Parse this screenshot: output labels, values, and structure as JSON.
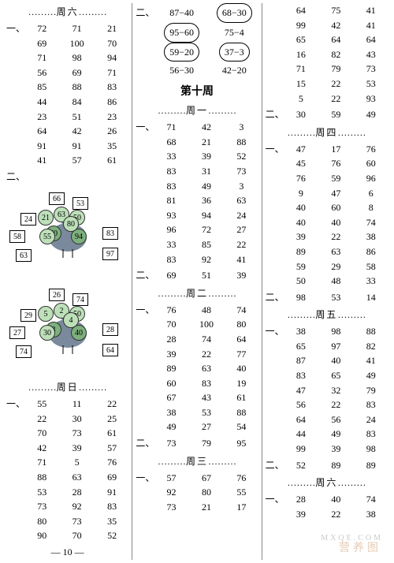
{
  "page_number": "— 10 —",
  "watermark_large": "营养图",
  "watermark_small": "MXQE.COM",
  "col1": {
    "header_sat": "周六",
    "sec1_lead": "一、",
    "t_sat": [
      [
        "72",
        "71",
        "21"
      ],
      [
        "69",
        "100",
        "70"
      ],
      [
        "71",
        "98",
        "94"
      ],
      [
        "56",
        "69",
        "71"
      ],
      [
        "85",
        "88",
        "83"
      ],
      [
        "44",
        "84",
        "86"
      ],
      [
        "23",
        "51",
        "23"
      ],
      [
        "64",
        "42",
        "26"
      ],
      [
        "91",
        "91",
        "35"
      ],
      [
        "41",
        "57",
        "61"
      ]
    ],
    "sec2_lead": "二、",
    "peacock1_outer": [
      "24",
      "58",
      "63",
      "66",
      "53",
      "83",
      "97"
    ],
    "peacock1_inner_top": [
      "21",
      "63",
      "50"
    ],
    "peacock1_inner_bot": [
      "55",
      "80"
    ],
    "peacock1_inner_mid": [
      "60",
      "94"
    ],
    "peacock2_outer": [
      "29",
      "27",
      "74",
      "26",
      "74",
      "28",
      "64"
    ],
    "peacock2_inner_top": [
      "5",
      "2",
      "50"
    ],
    "peacock2_inner_bot": [
      "30",
      "4"
    ],
    "peacock2_inner_mid": [
      "3",
      "40"
    ],
    "header_sun": "周日",
    "t_sun_lead": "一、",
    "t_sun": [
      [
        "55",
        "11",
        "22"
      ],
      [
        "22",
        "30",
        "25"
      ],
      [
        "70",
        "73",
        "61"
      ],
      [
        "42",
        "39",
        "57"
      ],
      [
        "71",
        "5",
        "76"
      ],
      [
        "88",
        "63",
        "69"
      ],
      [
        "53",
        "28",
        "91"
      ],
      [
        "73",
        "92",
        "83"
      ],
      [
        "80",
        "73",
        "35"
      ],
      [
        "90",
        "70",
        "52"
      ]
    ]
  },
  "col2": {
    "sec2_lead": "二、",
    "ovals": [
      {
        "a": "87−40",
        "b": "68−30",
        "a_oval": false,
        "b_oval": true
      },
      {
        "a": "95−60",
        "b": "75−4",
        "a_oval": true,
        "b_oval": false
      },
      {
        "a": "59−20",
        "b": "37−3",
        "a_oval": true,
        "b_oval": true
      },
      {
        "a": "56−30",
        "b": "42−20",
        "a_oval": false,
        "b_oval": false
      }
    ],
    "big_title": "第十周",
    "header_mon": "周一",
    "t_mon_lead": "一、",
    "t_mon": [
      [
        "71",
        "42",
        "3"
      ],
      [
        "68",
        "21",
        "88"
      ],
      [
        "33",
        "39",
        "52"
      ],
      [
        "83",
        "31",
        "73"
      ],
      [
        "83",
        "49",
        "3"
      ],
      [
        "81",
        "36",
        "63"
      ],
      [
        "93",
        "94",
        "24"
      ],
      [
        "96",
        "72",
        "27"
      ],
      [
        "33",
        "85",
        "22"
      ],
      [
        "83",
        "92",
        "41"
      ]
    ],
    "t_mon2_lead": "二、",
    "t_mon2": [
      [
        "69",
        "51",
        "39"
      ]
    ],
    "header_tue": "周二",
    "t_tue_lead": "一、",
    "t_tue": [
      [
        "76",
        "48",
        "74"
      ],
      [
        "70",
        "100",
        "80"
      ],
      [
        "28",
        "74",
        "64"
      ],
      [
        "39",
        "22",
        "77"
      ],
      [
        "89",
        "63",
        "40"
      ],
      [
        "60",
        "83",
        "19"
      ],
      [
        "67",
        "43",
        "61"
      ],
      [
        "38",
        "53",
        "88"
      ],
      [
        "49",
        "27",
        "54"
      ]
    ],
    "t_tue2_lead": "二、",
    "t_tue2": [
      [
        "73",
        "79",
        "95"
      ]
    ],
    "header_wed": "周三",
    "t_wed_lead": "一、",
    "t_wed": [
      [
        "57",
        "67",
        "76"
      ],
      [
        "92",
        "80",
        "55"
      ],
      [
        "73",
        "21",
        "17"
      ]
    ]
  },
  "col3": {
    "t_top": [
      [
        "64",
        "75",
        "41"
      ],
      [
        "99",
        "42",
        "41"
      ],
      [
        "65",
        "64",
        "64"
      ],
      [
        "16",
        "82",
        "43"
      ],
      [
        "71",
        "79",
        "73"
      ],
      [
        "15",
        "22",
        "53"
      ],
      [
        "5",
        "22",
        "93"
      ]
    ],
    "t_top2_lead": "二、",
    "t_top2": [
      [
        "30",
        "59",
        "49"
      ]
    ],
    "header_thu": "周四",
    "t_thu_lead": "一、",
    "t_thu": [
      [
        "47",
        "17",
        "76"
      ],
      [
        "45",
        "76",
        "60"
      ],
      [
        "76",
        "59",
        "96"
      ],
      [
        "9",
        "47",
        "6"
      ],
      [
        "40",
        "60",
        "8"
      ],
      [
        "40",
        "40",
        "74"
      ],
      [
        "39",
        "22",
        "38"
      ],
      [
        "89",
        "63",
        "86"
      ],
      [
        "59",
        "29",
        "58"
      ],
      [
        "50",
        "48",
        "33"
      ]
    ],
    "t_thu2_lead": "二、",
    "t_thu2": [
      [
        "98",
        "53",
        "14"
      ]
    ],
    "header_fri": "周五",
    "t_fri_lead": "一、",
    "t_fri": [
      [
        "38",
        "98",
        "88"
      ],
      [
        "65",
        "97",
        "82"
      ],
      [
        "87",
        "40",
        "41"
      ],
      [
        "83",
        "65",
        "49"
      ],
      [
        "47",
        "32",
        "79"
      ],
      [
        "56",
        "22",
        "83"
      ],
      [
        "64",
        "56",
        "24"
      ],
      [
        "44",
        "49",
        "83"
      ],
      [
        "99",
        "39",
        "98"
      ]
    ],
    "t_fri2_lead": "二、",
    "t_fri2": [
      [
        "52",
        "89",
        "89"
      ]
    ],
    "header_sat": "周六",
    "t_sat_lead": "一、",
    "t_sat": [
      [
        "28",
        "40",
        "74"
      ],
      [
        "39",
        "22",
        "38"
      ]
    ]
  }
}
